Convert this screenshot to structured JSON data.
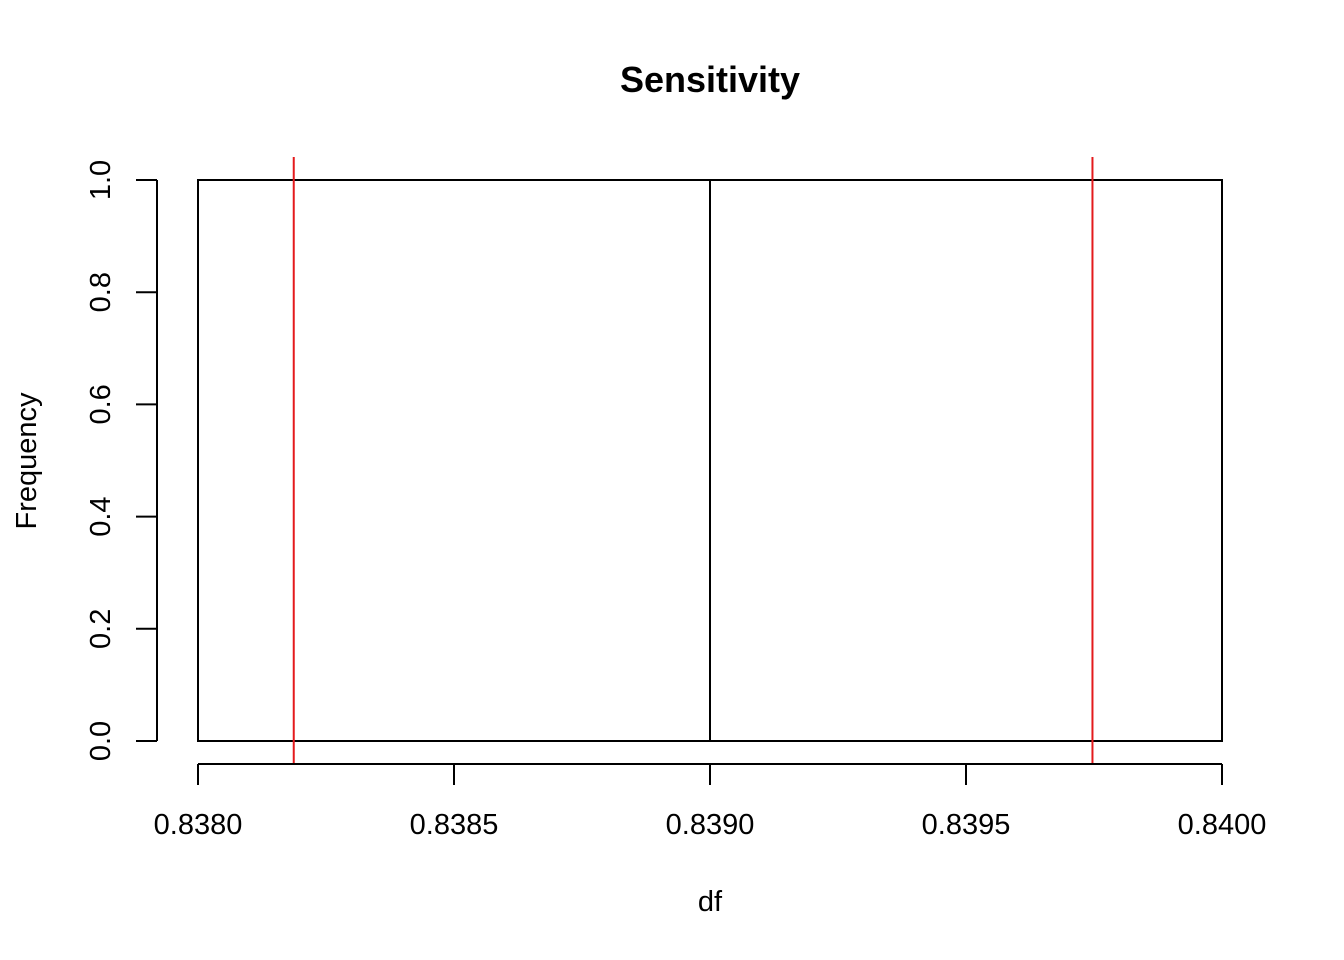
{
  "chart_data": {
    "type": "bar",
    "title": "Sensitivity",
    "xlabel": "df",
    "ylabel": "Frequency",
    "bins": [
      {
        "x0": 0.838,
        "x1": 0.839,
        "count": 1
      },
      {
        "x0": 0.839,
        "x1": 0.84,
        "count": 1
      }
    ],
    "xlim": [
      0.838,
      0.84
    ],
    "ylim": [
      0,
      1
    ],
    "x_ticks": [
      "0.8380",
      "0.8385",
      "0.8390",
      "0.8395",
      "0.8400"
    ],
    "y_ticks": [
      "0.0",
      "0.2",
      "0.4",
      "0.6",
      "0.8",
      "1.0"
    ],
    "reference_lines": [
      0.838187,
      0.839747
    ],
    "reference_line_color": "#e41a1c",
    "bar_fill": "#ffffff",
    "bar_stroke": "#000000",
    "grid": false,
    "legend": "none"
  }
}
